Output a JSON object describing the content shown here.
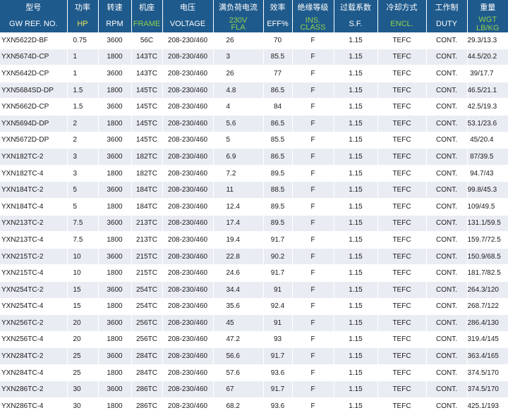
{
  "header": {
    "row1": [
      "型号",
      "功率",
      "转速",
      "机座",
      "电压",
      "满负荷电流",
      "效率",
      "绝缘等级",
      "过载系数",
      "冷却方式",
      "工作制",
      "重量"
    ],
    "row2": [
      "GW REF. NO.",
      "HP",
      "RPM",
      "FRAME",
      "VOLTAGE",
      "230V FLA",
      "EFF%",
      "INS. CLASS",
      "S.F.",
      "ENCL.",
      "DUTY",
      "WGT LB/KG"
    ],
    "row2_fla_line1": "230V",
    "row2_fla_line2": "FLA",
    "row2_ins_line1": "INS.",
    "row2_ins_line2": "CLASS",
    "colors": {
      "header_bg": "#1f5a8c",
      "yellow": "#e8e25a",
      "green": "#8fd14f",
      "row_alt": "#e9edf3"
    }
  },
  "rows": [
    [
      "YXN5622D-BF",
      "0.75",
      "3600",
      "56C",
      "208-230/460",
      "26",
      "70",
      "F",
      "1.15",
      "TEFC",
      "CONT.",
      "29.3/13.3"
    ],
    [
      "YXN5674D-CP",
      "1",
      "1800",
      "143TC",
      "208-230/460",
      "3",
      "85.5",
      "F",
      "1.15",
      "TEFC",
      "CONT.",
      "44.5/20.2"
    ],
    [
      "YXN5642D-CP",
      "1",
      "3600",
      "143TC",
      "208-230/460",
      "26",
      "77",
      "F",
      "1.15",
      "TEFC",
      "CONT.",
      "39/17.7"
    ],
    [
      "YXN5684SD-DP",
      "1.5",
      "1800",
      "145TC",
      "208-230/460",
      "4.8",
      "86.5",
      "F",
      "1.15",
      "TEFC",
      "CONT.",
      "46.5/21.1"
    ],
    [
      "YXN5662D-CP",
      "1.5",
      "3600",
      "145TC",
      "208-230/460",
      "4",
      "84",
      "F",
      "1.15",
      "TEFC",
      "CONT.",
      "42.5/19.3"
    ],
    [
      "YXN5694D-DP",
      "2",
      "1800",
      "145TC",
      "208-230/460",
      "5.6",
      "86.5",
      "F",
      "1.15",
      "TEFC",
      "CONT.",
      "53.1/23.6"
    ],
    [
      "YXN5672D-DP",
      "2",
      "3600",
      "145TC",
      "208-230/460",
      "5",
      "85.5",
      "F",
      "1.15",
      "TEFC",
      "CONT.",
      "45/20.4"
    ],
    [
      "YXN182TC-2",
      "3",
      "3600",
      "182TC",
      "208-230/460",
      "6.9",
      "86.5",
      "F",
      "1.15",
      "TEFC",
      "CONT.",
      "87/39.5"
    ],
    [
      "YXN182TC-4",
      "3",
      "1800",
      "182TC",
      "208-230/460",
      "7.2",
      "89.5",
      "F",
      "1.15",
      "TEFC",
      "CONT.",
      "94.7/43"
    ],
    [
      "YXN184TC-2",
      "5",
      "3600",
      "184TC",
      "208-230/460",
      "11",
      "88.5",
      "F",
      "1.15",
      "TEFC",
      "CONT.",
      "99.8/45.3"
    ],
    [
      "YXN184TC-4",
      "5",
      "1800",
      "184TC",
      "208-230/460",
      "12.4",
      "89.5",
      "F",
      "1.15",
      "TEFC",
      "CONT.",
      "109/49.5"
    ],
    [
      "YXN213TC-2",
      "7.5",
      "3600",
      "213TC",
      "208-230/460",
      "17.4",
      "89.5",
      "F",
      "1.15",
      "TEFC",
      "CONT.",
      "131.1/59.5"
    ],
    [
      "YXN213TC-4",
      "7.5",
      "1800",
      "213TC",
      "208-230/460",
      "19.4",
      "91.7",
      "F",
      "1.15",
      "TEFC",
      "CONT.",
      "159.7/72.5"
    ],
    [
      "YXN215TC-2",
      "10",
      "3600",
      "215TC",
      "208-230/460",
      "22.8",
      "90.2",
      "F",
      "1.15",
      "TEFC",
      "CONT.",
      "150.9/68.5"
    ],
    [
      "YXN215TC-4",
      "10",
      "1800",
      "215TC",
      "208-230/460",
      "24.6",
      "91.7",
      "F",
      "1.15",
      "TEFC",
      "CONT.",
      "181.7/82.5"
    ],
    [
      "YXN254TC-2",
      "15",
      "3600",
      "254TC",
      "208-230/460",
      "34.4",
      "91",
      "F",
      "1.15",
      "TEFC",
      "CONT.",
      "264.3/120"
    ],
    [
      "YXN254TC-4",
      "15",
      "1800",
      "254TC",
      "208-230/460",
      "35.6",
      "92.4",
      "F",
      "1.15",
      "TEFC",
      "CONT.",
      "268.7/122"
    ],
    [
      "YXN256TC-2",
      "20",
      "3600",
      "256TC",
      "208-230/460",
      "45",
      "91",
      "F",
      "1.15",
      "TEFC",
      "CONT.",
      "286.4/130"
    ],
    [
      "YXN256TC-4",
      "20",
      "1800",
      "256TC",
      "208-230/460",
      "47.2",
      "93",
      "F",
      "1.15",
      "TEFC",
      "CONT.",
      "319.4/145"
    ],
    [
      "YXN284TC-2",
      "25",
      "3600",
      "284TC",
      "208-230/460",
      "56.6",
      "91.7",
      "F",
      "1.15",
      "TEFC",
      "CONT.",
      "363.4/165"
    ],
    [
      "YXN284TC-4",
      "25",
      "1800",
      "284TC",
      "208-230/460",
      "57.6",
      "93.6",
      "F",
      "1.15",
      "TEFC",
      "CONT.",
      "374.5/170"
    ],
    [
      "YXN286TC-2",
      "30",
      "3600",
      "286TC",
      "208-230/460",
      "67",
      "91.7",
      "F",
      "1.15",
      "TEFC",
      "CONT.",
      "374.5/170"
    ],
    [
      "YXN286TC-4",
      "30",
      "1800",
      "286TC",
      "208-230/460",
      "68.2",
      "93.6",
      "F",
      "1.15",
      "TEFC",
      "CONT.",
      "425.1/193"
    ]
  ]
}
